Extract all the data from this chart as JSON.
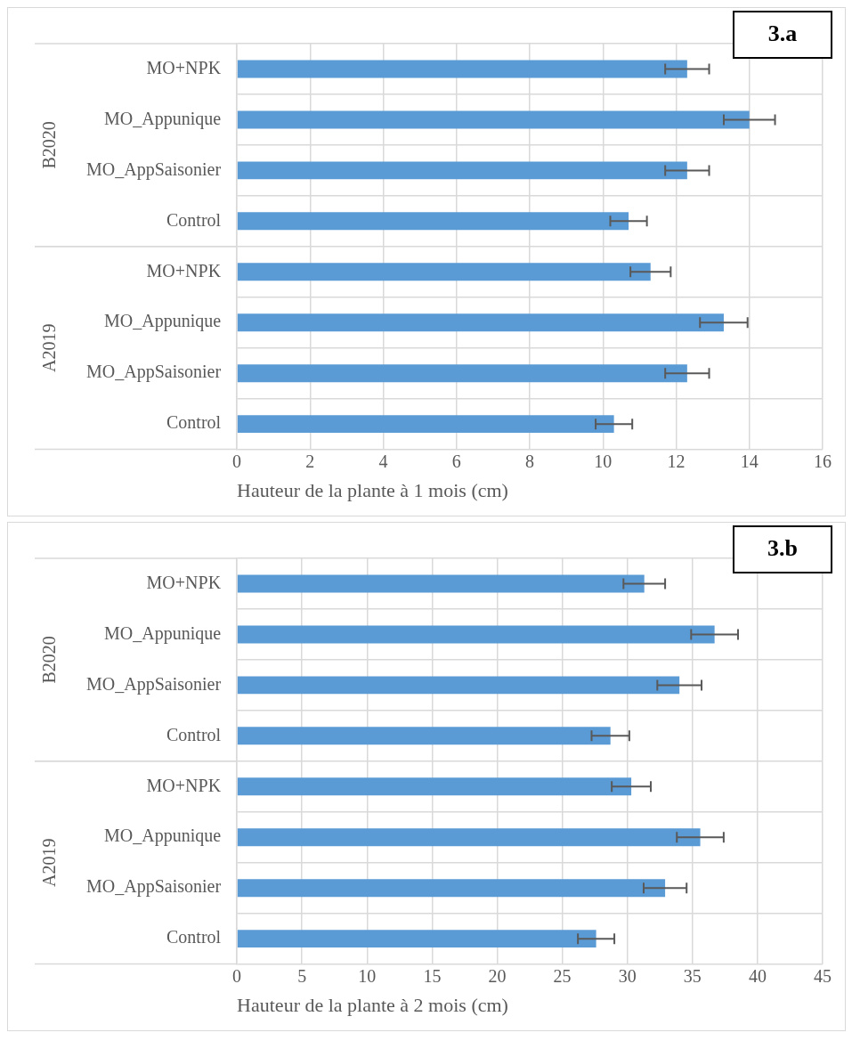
{
  "chart_data": [
    {
      "type": "bar",
      "title": "3.a",
      "orientation": "horizontal",
      "xlabel": "Hauteur de la plante à 1 mois (cm)",
      "categories": [
        "MO+NPK",
        "MO_Appunique",
        "MO_AppSaisonier",
        "Control",
        "MO+NPK",
        "MO_Appunique",
        "MO_AppSaisonier",
        "Control"
      ],
      "annotations": [
        "B2020",
        "A2019"
      ],
      "values": [
        12.3,
        14.0,
        12.3,
        10.7,
        11.3,
        13.3,
        12.3,
        10.3
      ],
      "errors": [
        0.6,
        0.7,
        0.6,
        0.5,
        0.55,
        0.65,
        0.6,
        0.5
      ],
      "color": "#5b9bd5",
      "xlim": [
        0,
        16
      ],
      "xticks": [
        0,
        2,
        4,
        6,
        8,
        10,
        12,
        14,
        16
      ],
      "grid": true
    },
    {
      "type": "bar",
      "title": "3.b",
      "orientation": "horizontal",
      "xlabel": "Hauteur de la plante à 2 mois (cm)",
      "categories": [
        "MO+NPK",
        "MO_Appunique",
        "MO_AppSaisonier",
        "Control",
        "MO+NPK",
        "MO_Appunique",
        "MO_AppSaisonier",
        "Control"
      ],
      "annotations": [
        "B2020",
        "A2019"
      ],
      "values": [
        31.3,
        36.7,
        34.0,
        28.7,
        30.3,
        35.6,
        32.9,
        27.6
      ],
      "errors": [
        1.6,
        1.8,
        1.7,
        1.45,
        1.5,
        1.8,
        1.65,
        1.4
      ],
      "color": "#5b9bd5",
      "xlim": [
        0,
        45
      ],
      "xticks": [
        0,
        5,
        10,
        15,
        20,
        25,
        30,
        35,
        40,
        45
      ],
      "grid": true
    }
  ]
}
